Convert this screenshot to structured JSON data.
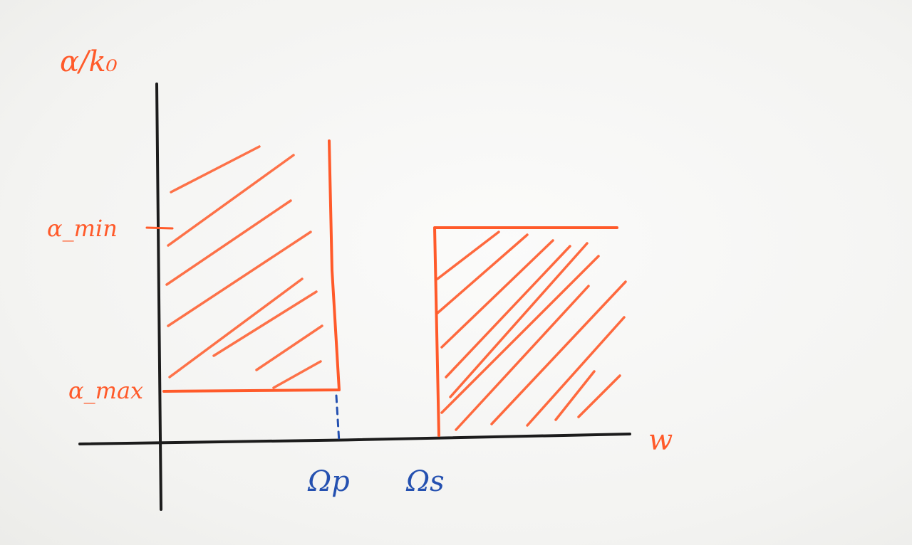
{
  "colors": {
    "ink_red": "#ff5a2a",
    "ink_blue": "#2450b0",
    "ink_black": "#1c1c1c"
  },
  "labels": {
    "y_axis": "α/k₀",
    "x_axis": "w",
    "alpha_min": "α_min",
    "alpha_max": "α_max",
    "omega_p": "Ωp",
    "omega_s": "Ωs"
  }
}
